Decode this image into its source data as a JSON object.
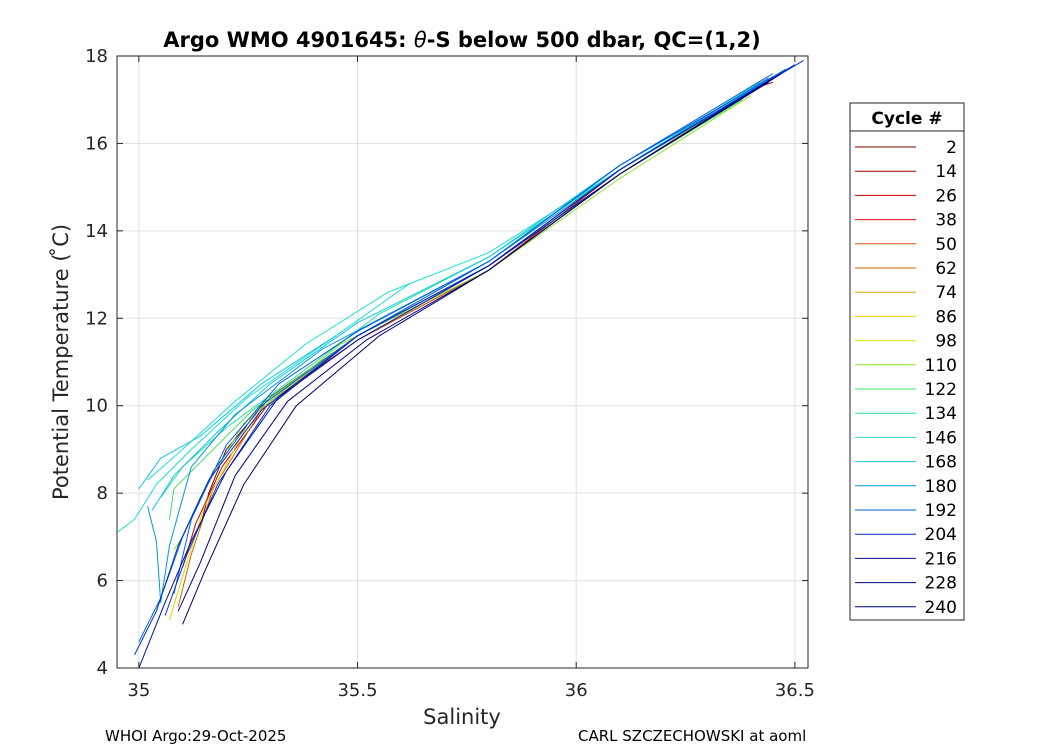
{
  "chart_data": {
    "type": "line",
    "title_pre": "Argo WMO 4901645: ",
    "title_theta": "θ",
    "title_post": "-S below 500 dbar,  QC=(1,2)",
    "xlabel": "Salinity",
    "ylabel": "Potential Temperature ( ̊C)",
    "xlim": [
      34.95,
      36.53
    ],
    "ylim": [
      4,
      18
    ],
    "xticks": [
      35,
      35.5,
      36,
      36.5
    ],
    "xtick_labels": [
      "35",
      "35.5",
      "36",
      "36.5"
    ],
    "yticks": [
      4,
      6,
      8,
      10,
      12,
      14,
      16,
      18
    ],
    "ytick_labels": [
      "4",
      "6",
      "8",
      "10",
      "12",
      "14",
      "16",
      "18"
    ],
    "grid": true,
    "legend": {
      "title": "Cycle #",
      "placement": "right-outside",
      "entries": [
        {
          "label": "2",
          "color": "#7f0000"
        },
        {
          "label": "14",
          "color": "#a30000"
        },
        {
          "label": "26",
          "color": "#c80000"
        },
        {
          "label": "38",
          "color": "#e00a0a"
        },
        {
          "label": "50",
          "color": "#e84a1a"
        },
        {
          "label": "62",
          "color": "#c86a00"
        },
        {
          "label": "74",
          "color": "#d4a000"
        },
        {
          "label": "86",
          "color": "#e8d000"
        },
        {
          "label": "98",
          "color": "#d4e600"
        },
        {
          "label": "110",
          "color": "#90e030"
        },
        {
          "label": "122",
          "color": "#40e060"
        },
        {
          "label": "134",
          "color": "#20e0a0"
        },
        {
          "label": "146",
          "color": "#20e0d0"
        },
        {
          "label": "168",
          "color": "#10c8e8"
        },
        {
          "label": "180",
          "color": "#0098d8"
        },
        {
          "label": "192",
          "color": "#0060e0"
        },
        {
          "label": "204",
          "color": "#0030c8"
        },
        {
          "label": "216",
          "color": "#0010a0"
        },
        {
          "label": "228",
          "color": "#000080"
        },
        {
          "label": "240",
          "color": "#000068"
        }
      ]
    },
    "series": [
      {
        "name": "2",
        "color": "#7f0000",
        "points": [
          [
            35.14,
            7.2
          ],
          [
            35.16,
            8.0
          ],
          [
            35.2,
            9.0
          ],
          [
            35.3,
            10.2
          ],
          [
            35.5,
            11.6
          ],
          [
            35.8,
            13.2
          ],
          [
            36.1,
            15.4
          ],
          [
            36.42,
            17.3
          ],
          [
            36.45,
            17.4
          ]
        ]
      },
      {
        "name": "26",
        "color": "#c80000",
        "points": [
          [
            35.1,
            6.3
          ],
          [
            35.13,
            7.3
          ],
          [
            35.19,
            8.6
          ],
          [
            35.3,
            10.1
          ],
          [
            35.5,
            11.5
          ],
          [
            35.8,
            13.1
          ],
          [
            36.1,
            15.4
          ],
          [
            36.44,
            17.5
          ]
        ]
      },
      {
        "name": "62",
        "color": "#c86a00",
        "points": [
          [
            35.09,
            5.4
          ],
          [
            35.12,
            6.6
          ],
          [
            35.17,
            8.1
          ],
          [
            35.28,
            9.9
          ],
          [
            35.5,
            11.5
          ],
          [
            35.8,
            13.1
          ],
          [
            36.1,
            15.3
          ],
          [
            36.4,
            17.2
          ]
        ]
      },
      {
        "name": "86",
        "color": "#e8d000",
        "points": [
          [
            35.07,
            5.1
          ],
          [
            35.1,
            6.1
          ],
          [
            35.15,
            7.7
          ],
          [
            35.26,
            9.8
          ],
          [
            35.5,
            11.6
          ],
          [
            35.8,
            13.2
          ],
          [
            36.1,
            15.3
          ],
          [
            36.38,
            17.1
          ]
        ]
      },
      {
        "name": "110",
        "color": "#90e030",
        "points": [
          [
            35.08,
            6.7
          ],
          [
            35.1,
            7.0
          ],
          [
            35.14,
            7.9
          ],
          [
            35.24,
            9.6
          ],
          [
            35.46,
            11.4
          ],
          [
            35.8,
            13.1
          ],
          [
            36.1,
            15.2
          ],
          [
            36.4,
            17.1
          ]
        ]
      },
      {
        "name": "122",
        "color": "#40e060",
        "points": [
          [
            35.07,
            7.4
          ],
          [
            35.08,
            8.1
          ],
          [
            35.15,
            8.8
          ],
          [
            35.26,
            9.9
          ],
          [
            35.5,
            11.6
          ],
          [
            35.8,
            13.2
          ],
          [
            36.1,
            15.3
          ],
          [
            36.38,
            17.0
          ]
        ]
      },
      {
        "name": "134",
        "color": "#20e0a0",
        "points": [
          [
            35.05,
            7.9
          ],
          [
            35.1,
            8.6
          ],
          [
            35.2,
            9.5
          ],
          [
            35.35,
            10.6
          ],
          [
            35.55,
            12.1
          ],
          [
            35.8,
            13.4
          ],
          [
            36.1,
            15.4
          ],
          [
            36.42,
            17.3
          ]
        ]
      },
      {
        "name": "146",
        "color": "#20e0d0",
        "points": [
          [
            34.95,
            7.1
          ],
          [
            34.99,
            7.4
          ],
          [
            35.04,
            8.2
          ],
          [
            35.12,
            9.0
          ],
          [
            35.25,
            10.2
          ],
          [
            35.45,
            11.6
          ],
          [
            35.62,
            12.8
          ]
        ]
      },
      {
        "name": "146b",
        "color": "#20e0d0",
        "points": [
          [
            35.02,
            8.3
          ],
          [
            35.1,
            9.0
          ],
          [
            35.22,
            10.1
          ],
          [
            35.38,
            11.4
          ],
          [
            35.57,
            12.6
          ],
          [
            35.8,
            13.5
          ],
          [
            36.1,
            15.4
          ],
          [
            36.42,
            17.4
          ]
        ]
      },
      {
        "name": "168",
        "color": "#10c8e8",
        "points": [
          [
            35.03,
            7.6
          ],
          [
            35.08,
            8.4
          ],
          [
            35.18,
            9.4
          ],
          [
            35.3,
            10.5
          ],
          [
            35.5,
            11.9
          ],
          [
            35.8,
            13.4
          ],
          [
            36.1,
            15.5
          ],
          [
            36.45,
            17.5
          ]
        ]
      },
      {
        "name": "168b",
        "color": "#10c8e8",
        "points": [
          [
            35.0,
            8.1
          ],
          [
            35.05,
            8.8
          ],
          [
            35.14,
            9.3
          ],
          [
            35.28,
            10.5
          ],
          [
            35.45,
            11.6
          ]
        ]
      },
      {
        "name": "180",
        "color": "#0098d8",
        "points": [
          [
            35.02,
            7.7
          ],
          [
            35.04,
            6.9
          ],
          [
            35.05,
            5.5
          ],
          [
            35.07,
            6.8
          ],
          [
            35.12,
            8.6
          ],
          [
            35.22,
            9.8
          ],
          [
            35.42,
            11.3
          ],
          [
            35.8,
            13.3
          ],
          [
            36.1,
            15.4
          ],
          [
            36.44,
            17.5
          ]
        ]
      },
      {
        "name": "192",
        "color": "#0060e0",
        "points": [
          [
            35.0,
            4.6
          ],
          [
            35.05,
            5.6
          ],
          [
            35.1,
            7.0
          ],
          [
            35.17,
            8.5
          ],
          [
            35.28,
            10.0
          ],
          [
            35.5,
            11.6
          ],
          [
            35.8,
            13.3
          ],
          [
            36.1,
            15.5
          ],
          [
            36.45,
            17.6
          ]
        ]
      },
      {
        "name": "192b",
        "color": "#0060e0",
        "points": [
          [
            35.08,
            5.7
          ],
          [
            35.12,
            7.4
          ],
          [
            35.2,
            9.1
          ],
          [
            35.32,
            10.5
          ],
          [
            35.5,
            11.7
          ],
          [
            35.8,
            13.3
          ],
          [
            36.1,
            15.5
          ],
          [
            36.48,
            17.7
          ]
        ]
      },
      {
        "name": "204",
        "color": "#0030c8",
        "points": [
          [
            34.99,
            4.3
          ],
          [
            35.04,
            5.3
          ],
          [
            35.09,
            6.8
          ],
          [
            35.16,
            8.3
          ],
          [
            35.28,
            9.9
          ],
          [
            35.5,
            11.6
          ],
          [
            35.8,
            13.2
          ],
          [
            36.1,
            15.4
          ],
          [
            36.5,
            17.8
          ]
        ]
      },
      {
        "name": "204b",
        "color": "#0030c8",
        "points": [
          [
            35.06,
            5.2
          ],
          [
            35.11,
            6.6
          ],
          [
            35.18,
            8.2
          ],
          [
            35.3,
            10.0
          ],
          [
            35.5,
            11.6
          ],
          [
            35.8,
            13.2
          ],
          [
            36.1,
            15.4
          ],
          [
            36.52,
            17.9
          ]
        ]
      },
      {
        "name": "216",
        "color": "#0010a0",
        "points": [
          [
            35.0,
            4.0
          ],
          [
            35.06,
            5.5
          ],
          [
            35.12,
            6.9
          ],
          [
            35.2,
            8.5
          ],
          [
            35.32,
            10.2
          ],
          [
            35.5,
            11.5
          ],
          [
            35.8,
            13.2
          ],
          [
            36.1,
            15.3
          ],
          [
            36.45,
            17.5
          ]
        ]
      },
      {
        "name": "228",
        "color": "#000080",
        "points": [
          [
            35.09,
            5.3
          ],
          [
            35.14,
            6.4
          ],
          [
            35.22,
            8.4
          ],
          [
            35.34,
            10.1
          ],
          [
            35.52,
            11.5
          ],
          [
            35.8,
            13.1
          ],
          [
            36.1,
            15.3
          ],
          [
            36.44,
            17.4
          ]
        ]
      },
      {
        "name": "240",
        "color": "#000068",
        "points": [
          [
            35.1,
            5.0
          ],
          [
            35.15,
            6.2
          ],
          [
            35.24,
            8.2
          ],
          [
            35.36,
            10.0
          ],
          [
            35.55,
            11.6
          ],
          [
            35.8,
            13.1
          ],
          [
            36.1,
            15.3
          ],
          [
            36.47,
            17.6
          ]
        ]
      }
    ]
  },
  "footer": {
    "left": "WHOI Argo:29-Oct-2025",
    "right": "CARL SZCZECHOWSKI at aoml"
  }
}
